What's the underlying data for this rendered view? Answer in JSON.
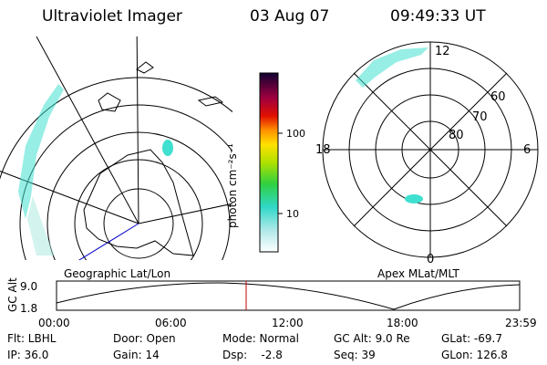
{
  "header": {
    "instrument": "Ultraviolet Imager",
    "date": "03 Aug 07",
    "time": "09:49:33 UT"
  },
  "colorbar": {
    "label": "photon cm⁻²s⁻¹",
    "ticks": [
      "100",
      "10"
    ]
  },
  "apex_plot": {
    "lat_labels": [
      "60",
      "70",
      "80"
    ],
    "mlt_labels": [
      "12",
      "18",
      "6",
      "0"
    ]
  },
  "alt_panel": {
    "ylabel": "GC Alt",
    "yticks": [
      "9.0",
      "1.8"
    ],
    "left_label": "Geographic Lat/Lon",
    "right_label": "Apex MLat/MLT",
    "xticks": [
      "00:00",
      "06:00",
      "12:00",
      "18:00",
      "23:59"
    ]
  },
  "footer": {
    "flt": "Flt: LBHL",
    "door": "Door: Open",
    "mode": "Mode: Normal",
    "gc_alt": "GC Alt: 9.0 Re",
    "glat": "GLat: -69.7",
    "ip": "IP: 36.0",
    "gain": "Gain: 14",
    "dsp": "Dsp:    -2.8",
    "seq": "Seq: 39",
    "glon": "GLon: 126.8"
  },
  "colors": {
    "aurora": "#40e0d0",
    "cursor": "#c00000",
    "map_line": "#000000",
    "meridian": "#0000cc"
  }
}
